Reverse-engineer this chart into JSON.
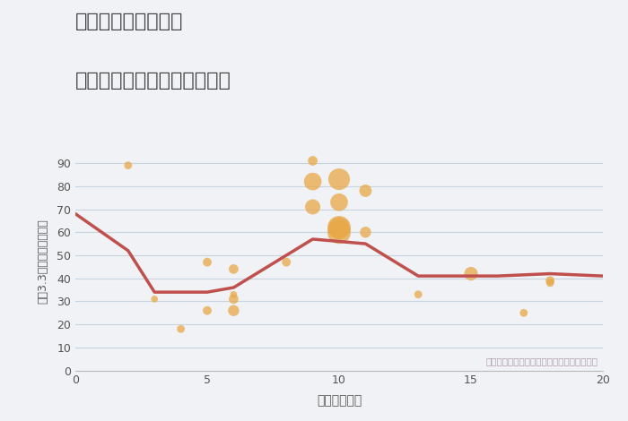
{
  "title_line1": "三重県鈴鹿市磯山の",
  "title_line2": "駅距離別中古マンション価格",
  "xlabel": "駅距離（分）",
  "ylabel": "坪（3.3㎡）単価（万円）",
  "xlim": [
    0,
    20
  ],
  "ylim": [
    0,
    95
  ],
  "yticks": [
    0,
    10,
    20,
    30,
    40,
    50,
    60,
    70,
    80,
    90
  ],
  "xticks": [
    0,
    5,
    10,
    15,
    20
  ],
  "line_color": "#c0504d",
  "line_x": [
    0,
    2,
    3,
    5,
    6,
    9,
    10,
    11,
    13,
    15,
    16,
    18,
    20
  ],
  "line_y": [
    68,
    52,
    34,
    34,
    36,
    57,
    56,
    55,
    41,
    41,
    41,
    42,
    41
  ],
  "scatter_x": [
    2,
    3,
    4,
    5,
    5,
    6,
    6,
    6,
    6,
    8,
    9,
    9,
    9,
    10,
    10,
    10,
    10,
    10,
    11,
    11,
    13,
    15,
    17,
    18,
    18
  ],
  "scatter_y": [
    89,
    31,
    18,
    26,
    47,
    26,
    31,
    44,
    33,
    47,
    91,
    82,
    71,
    83,
    73,
    62,
    62,
    60,
    78,
    60,
    33,
    42,
    25,
    39,
    38
  ],
  "scatter_sizes": [
    40,
    30,
    40,
    50,
    50,
    80,
    60,
    60,
    30,
    50,
    60,
    200,
    150,
    300,
    200,
    350,
    280,
    350,
    100,
    80,
    40,
    120,
    40,
    50,
    40
  ],
  "scatter_color": "#e8a848",
  "scatter_alpha": 0.75,
  "annotation": "円の大きさは、取引のあった物件面積を示す",
  "annotation_color": "#b09ab0",
  "bg_color": "#f0f2f5",
  "plot_bg": "#f0f2f5",
  "grid_color": "#c8d4e0",
  "title_color": "#404040"
}
